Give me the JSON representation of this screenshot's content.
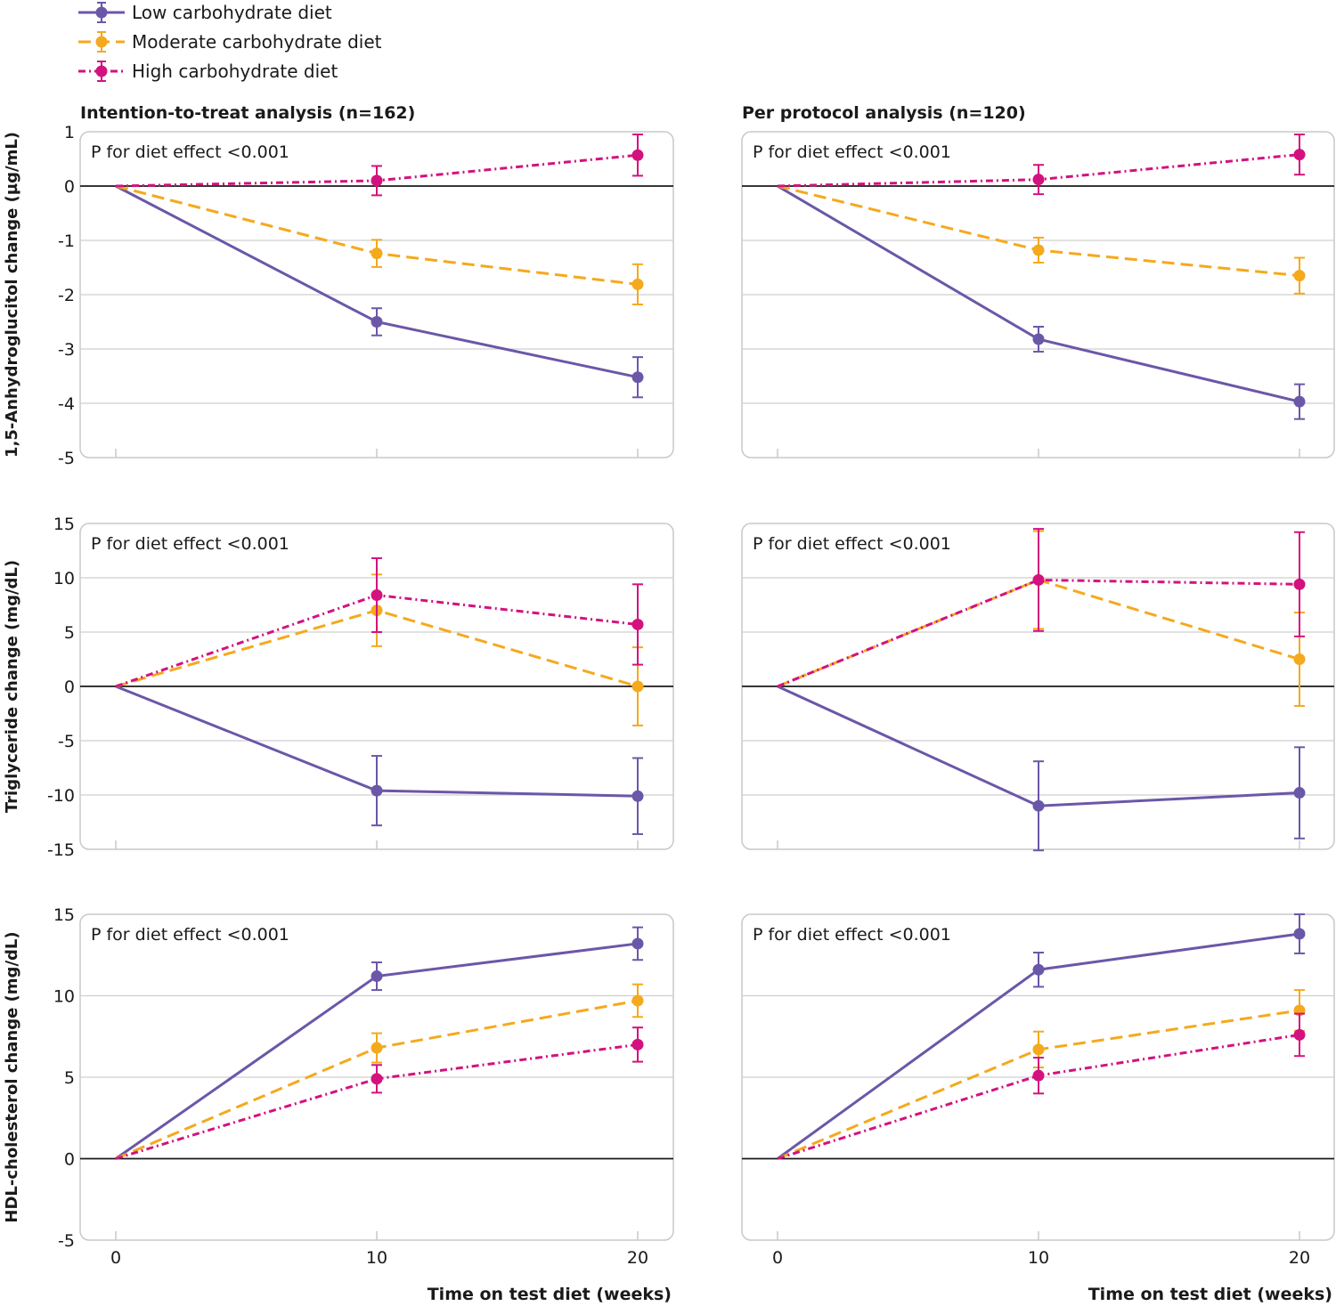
{
  "legend": [
    {
      "name": "Low carbohydrate diet",
      "color": "#6b57a8",
      "dash": "solid"
    },
    {
      "name": "Moderate carbohydrate diet",
      "color": "#f5a91d",
      "dash": "dashed"
    },
    {
      "name": "High carbohydrate diet",
      "color": "#d3127f",
      "dash": "dotted"
    }
  ],
  "column_titles": [
    "Intention-to-treat analysis (n=162)",
    "Per protocol analysis (n=120)"
  ],
  "xlabel": "Time on test diet (weeks)",
  "x_ticks": [
    "0",
    "10",
    "20"
  ],
  "chart_data": [
    {
      "type": "line",
      "row": 0,
      "col": 0,
      "title": "Intention-to-treat analysis (n=162)",
      "ylabel": "1,5-Anhydroglucitol change (µg/mL)",
      "xlabel": "",
      "annotation": "P for diet effect <0.001",
      "x": [
        0,
        10,
        20
      ],
      "ylim": [
        -5,
        1
      ],
      "yticks": [
        "1",
        "0",
        "-1",
        "-2",
        "-3",
        "-4",
        "-5"
      ],
      "series": [
        {
          "name": "Low carbohydrate diet",
          "values": [
            0,
            -2.5,
            -3.52
          ],
          "err": [
            0,
            0.25,
            0.37
          ]
        },
        {
          "name": "Moderate carbohydrate diet",
          "values": [
            0,
            -1.24,
            -1.81
          ],
          "err": [
            0,
            0.25,
            0.37
          ]
        },
        {
          "name": "High carbohydrate diet",
          "values": [
            0,
            0.1,
            0.57
          ],
          "err": [
            0,
            0.27,
            0.38
          ]
        }
      ]
    },
    {
      "type": "line",
      "row": 0,
      "col": 1,
      "title": "Per protocol analysis (n=120)",
      "ylabel": "",
      "xlabel": "",
      "annotation": "P for diet effect <0.001",
      "x": [
        0,
        10,
        20
      ],
      "ylim": [
        -5,
        1
      ],
      "yticks": [],
      "series": [
        {
          "name": "Low carbohydrate diet",
          "values": [
            0,
            -2.82,
            -3.97
          ],
          "err": [
            0,
            0.23,
            0.32
          ]
        },
        {
          "name": "Moderate carbohydrate diet",
          "values": [
            0,
            -1.18,
            -1.65
          ],
          "err": [
            0,
            0.23,
            0.33
          ]
        },
        {
          "name": "High carbohydrate diet",
          "values": [
            0,
            0.12,
            0.58
          ],
          "err": [
            0,
            0.27,
            0.37
          ]
        }
      ]
    },
    {
      "type": "line",
      "row": 1,
      "col": 0,
      "title": "",
      "ylabel": "Triglyceride change (mg/dL)",
      "xlabel": "",
      "annotation": "P for diet effect <0.001",
      "x": [
        0,
        10,
        20
      ],
      "ylim": [
        -15,
        15
      ],
      "yticks": [
        "15",
        "10",
        "5",
        "0",
        "-5",
        "-10",
        "-15"
      ],
      "series": [
        {
          "name": "Low carbohydrate diet",
          "values": [
            0,
            -9.6,
            -10.1
          ],
          "err": [
            0,
            3.2,
            3.5
          ]
        },
        {
          "name": "Moderate carbohydrate diet",
          "values": [
            0,
            7.0,
            0.0
          ],
          "err": [
            0,
            3.3,
            3.6
          ]
        },
        {
          "name": "High carbohydrate diet",
          "values": [
            0,
            8.4,
            5.7
          ],
          "err": [
            0,
            3.4,
            3.7
          ]
        }
      ]
    },
    {
      "type": "line",
      "row": 1,
      "col": 1,
      "title": "",
      "ylabel": "",
      "xlabel": "",
      "annotation": "P for diet effect <0.001",
      "x": [
        0,
        10,
        20
      ],
      "ylim": [
        -15,
        15
      ],
      "yticks": [],
      "series": [
        {
          "name": "Low carbohydrate diet",
          "values": [
            0,
            -11.0,
            -9.8
          ],
          "err": [
            0,
            4.1,
            4.2
          ]
        },
        {
          "name": "Moderate carbohydrate diet",
          "values": [
            0,
            9.8,
            2.5
          ],
          "err": [
            0,
            4.5,
            4.3
          ]
        },
        {
          "name": "High carbohydrate diet",
          "values": [
            0,
            9.8,
            9.4
          ],
          "err": [
            0,
            4.7,
            4.8
          ]
        }
      ]
    },
    {
      "type": "line",
      "row": 2,
      "col": 0,
      "title": "",
      "ylabel": "HDL-cholesterol change (mg/dL)",
      "xlabel": "Time on test diet (weeks)",
      "annotation": "P for diet effect <0.001",
      "x": [
        0,
        10,
        20
      ],
      "ylim": [
        -5,
        15
      ],
      "yticks": [
        "15",
        "10",
        "5",
        "0",
        "-5"
      ],
      "series": [
        {
          "name": "Low carbohydrate diet",
          "values": [
            0,
            11.2,
            13.2
          ],
          "err": [
            0,
            0.85,
            1.0
          ]
        },
        {
          "name": "Moderate carbohydrate diet",
          "values": [
            0,
            6.8,
            9.7
          ],
          "err": [
            0,
            0.9,
            1.0
          ]
        },
        {
          "name": "High carbohydrate diet",
          "values": [
            0,
            4.9,
            7.0
          ],
          "err": [
            0,
            0.85,
            1.05
          ]
        }
      ]
    },
    {
      "type": "line",
      "row": 2,
      "col": 1,
      "title": "",
      "ylabel": "",
      "xlabel": "Time on test diet (weeks)",
      "annotation": "P for diet effect <0.001",
      "x": [
        0,
        10,
        20
      ],
      "ylim": [
        -5,
        15
      ],
      "yticks": [],
      "series": [
        {
          "name": "Low carbohydrate diet",
          "values": [
            0,
            11.6,
            13.8
          ],
          "err": [
            0,
            1.05,
            1.2
          ]
        },
        {
          "name": "Moderate carbohydrate diet",
          "values": [
            0,
            6.7,
            9.1
          ],
          "err": [
            0,
            1.1,
            1.25
          ]
        },
        {
          "name": "High carbohydrate diet",
          "values": [
            0,
            5.1,
            7.6
          ],
          "err": [
            0,
            1.1,
            1.3
          ]
        }
      ]
    }
  ]
}
